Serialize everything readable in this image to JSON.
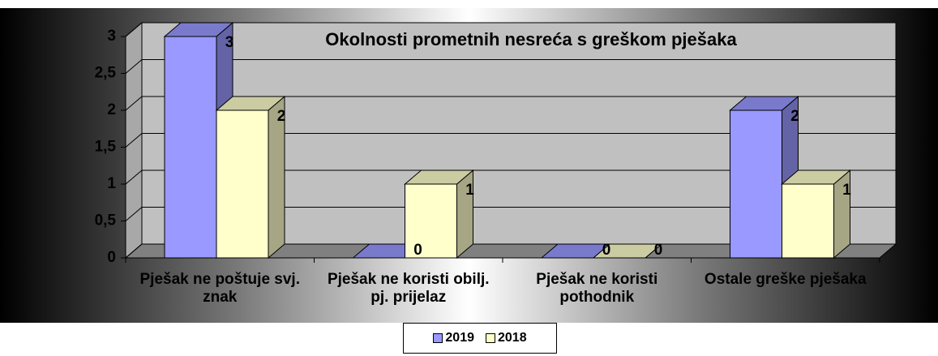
{
  "chart_data": {
    "type": "bar3d",
    "title": "Okolnosti prometnih nesreća s greškom pješaka",
    "categories": [
      "Pješak ne poštuje svj. znak",
      "Pješak ne koristi obilj. pj. prijelaz",
      "Pješak ne koristi pothodnik",
      "Ostale greške pješaka"
    ],
    "series": [
      {
        "name": "2019",
        "color": "#9999ff",
        "values": [
          3,
          0,
          0,
          2
        ]
      },
      {
        "name": "2018",
        "color": "#ffffcc",
        "values": [
          2,
          1,
          0,
          1
        ]
      }
    ],
    "ylim": [
      0,
      3
    ],
    "yticks": [
      0,
      {
        "value": 0.5,
        "label": "0,5"
      },
      1,
      {
        "value": 1.5,
        "label": "1,5"
      },
      2,
      {
        "value": 2.5,
        "label": "2,5"
      },
      3
    ],
    "grid": true,
    "legend": "bottom"
  }
}
